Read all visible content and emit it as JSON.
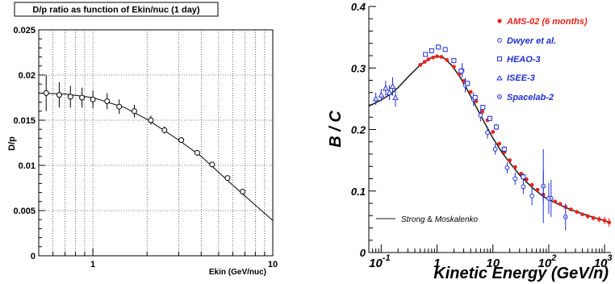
{
  "chart_data": [
    {
      "type": "scatter",
      "title": "D/p ratio as function of Ekin/nuc (1 day)",
      "xlabel": "Ekin (GeV/nuc)",
      "ylabel": "D/p",
      "x_scale": "log",
      "xlim": [
        0.5,
        10
      ],
      "ylim": [
        0,
        0.025
      ],
      "x_tick_labels": [
        "1",
        "10"
      ],
      "y_tick_labels": [
        "0",
        "0.005",
        "0.01",
        "0.015",
        "0.02",
        "0.025"
      ],
      "grid": true,
      "series": [
        {
          "marker": "open-circle",
          "x": [
            0.55,
            0.65,
            0.75,
            0.87,
            1.0,
            1.2,
            1.4,
            1.7,
            2.1,
            2.5,
            3.1,
            3.8,
            4.6,
            5.6,
            6.8
          ],
          "y": [
            0.018,
            0.0178,
            0.0176,
            0.0175,
            0.0173,
            0.0171,
            0.0165,
            0.016,
            0.015,
            0.0139,
            0.0128,
            0.0114,
            0.0101,
            0.0086,
            0.0071
          ],
          "yerr": [
            0.002,
            0.0014,
            0.0012,
            0.0011,
            0.001,
            0.0009,
            0.0008,
            0.0007,
            0.0005,
            0.0004,
            0.0003,
            0.0003,
            0.0002,
            0.0002,
            0.0002
          ]
        }
      ],
      "model_curve": {
        "x": [
          0.5,
          0.7,
          1.0,
          1.5,
          2.0,
          3.0,
          4.0,
          6.0,
          8.0,
          10.0
        ],
        "y": [
          0.018,
          0.0179,
          0.0175,
          0.0164,
          0.0151,
          0.0128,
          0.011,
          0.0078,
          0.0056,
          0.0039
        ]
      }
    },
    {
      "type": "scatter",
      "xlabel": "Kinetic Energy (GeV/n)",
      "ylabel": "B / C",
      "x_scale": "log",
      "xlim": [
        0.06,
        1300
      ],
      "ylim": [
        0,
        0.4
      ],
      "x_tick_labels": [
        {
          "base": "10",
          "exp": "-1"
        },
        {
          "base": "1",
          "exp": ""
        },
        {
          "base": "10",
          "exp": ""
        },
        {
          "base": "10",
          "exp": "2"
        },
        {
          "base": "10",
          "exp": "3"
        }
      ],
      "y_tick_labels": [
        "0",
        "0.1",
        "0.2",
        "0.3",
        "0.4"
      ],
      "legend_position": "top-right",
      "legend": [
        {
          "label": "AMS-02 (6 months)",
          "marker": "filled-circle",
          "color": "#e8241c"
        },
        {
          "label": "Dwyer et al.",
          "marker": "open-circle",
          "color": "#2030d0"
        },
        {
          "label": "HEAO-3",
          "marker": "open-square",
          "color": "#2030d0"
        },
        {
          "label": "ISEE-3",
          "marker": "open-triangle",
          "color": "#2030d0"
        },
        {
          "label": "Spacelab-2",
          "marker": "circle-dot",
          "color": "#2030d0"
        }
      ],
      "model_legend": {
        "name1": "Strong",
        "amp": "&",
        "name2": "Moskalenko"
      },
      "model_curve": {
        "x": [
          0.06,
          0.1,
          0.15,
          0.2,
          0.3,
          0.5,
          0.8,
          1.0,
          1.3,
          1.8,
          2.5,
          3.5,
          5,
          7,
          10,
          15,
          20,
          30,
          50,
          80,
          100,
          200,
          400,
          700,
          1000,
          1300
        ],
        "y": [
          0.238,
          0.248,
          0.258,
          0.268,
          0.285,
          0.305,
          0.317,
          0.319,
          0.317,
          0.305,
          0.287,
          0.264,
          0.237,
          0.212,
          0.186,
          0.161,
          0.146,
          0.126,
          0.106,
          0.091,
          0.086,
          0.073,
          0.063,
          0.056,
          0.052,
          0.048
        ]
      },
      "series": [
        {
          "name": "AMS-02 (6 months)",
          "color": "#e8241c",
          "marker": "filled-circle",
          "x": [
            0.5,
            0.6,
            0.7,
            0.85,
            1.0,
            1.2,
            1.5,
            2.0,
            2.5,
            3.0,
            4.0,
            5.0,
            6.5,
            8.0,
            10,
            13,
            16,
            20,
            25,
            32,
            40,
            50,
            63,
            80,
            100,
            130,
            160,
            200,
            250,
            320,
            400,
            500,
            630,
            800,
            1000,
            1200
          ],
          "y": [
            0.305,
            0.31,
            0.314,
            0.317,
            0.319,
            0.318,
            0.313,
            0.302,
            0.29,
            0.279,
            0.261,
            0.246,
            0.229,
            0.215,
            0.196,
            0.177,
            0.163,
            0.15,
            0.139,
            0.128,
            0.119,
            0.11,
            0.102,
            0.094,
            0.089,
            0.083,
            0.079,
            0.074,
            0.07,
            0.066,
            0.062,
            0.059,
            0.056,
            0.054,
            0.052,
            0.049
          ],
          "yerr": [
            0.002,
            0.002,
            0.002,
            0.002,
            0.002,
            0.002,
            0.002,
            0.002,
            0.002,
            0.002,
            0.002,
            0.002,
            0.002,
            0.002,
            0.002,
            0.002,
            0.002,
            0.002,
            0.002,
            0.002,
            0.002,
            0.002,
            0.002,
            0.002,
            0.002,
            0.002,
            0.003,
            0.003,
            0.003,
            0.003,
            0.003,
            0.004,
            0.004,
            0.005,
            0.006,
            0.007
          ]
        },
        {
          "name": "Dwyer et al.",
          "color": "#2030d0",
          "marker": "open-circle",
          "x": [
            2.8,
            3.2,
            4.5,
            6,
            8,
            11,
            18,
            25,
            35,
            50,
            80,
            110
          ],
          "y": [
            0.296,
            0.272,
            0.249,
            0.223,
            0.195,
            0.168,
            0.138,
            0.12,
            0.107,
            0.092,
            0.108,
            0.088
          ],
          "yerr": [
            0.012,
            0.012,
            0.011,
            0.01,
            0.01,
            0.009,
            0.009,
            0.01,
            0.012,
            0.015,
            0.025,
            0.03
          ]
        },
        {
          "name": "HEAO-3",
          "color": "#2030d0",
          "marker": "open-square",
          "x": [
            0.62,
            0.8,
            1.05,
            1.4,
            2.0,
            2.7,
            3.5,
            4.8,
            6.6,
            8.8,
            11.5,
            16,
            35
          ],
          "y": [
            0.322,
            0.328,
            0.334,
            0.33,
            0.312,
            0.295,
            0.275,
            0.252,
            0.236,
            0.218,
            0.204,
            0.168,
            0.123
          ],
          "yerr": [
            0.004,
            0.004,
            0.004,
            0.004,
            0.004,
            0.004,
            0.004,
            0.004,
            0.004,
            0.004,
            0.005,
            0.005,
            0.006
          ]
        },
        {
          "name": "ISEE-3",
          "color": "#2030d0",
          "marker": "open-triangle",
          "x": [
            0.08,
            0.1,
            0.12,
            0.14,
            0.16,
            0.18
          ],
          "y": [
            0.25,
            0.256,
            0.267,
            0.26,
            0.27,
            0.252
          ],
          "yerr": [
            0.01,
            0.01,
            0.012,
            0.012,
            0.015,
            0.015
          ]
        },
        {
          "name": "Spacelab-2",
          "color": "#2030d0",
          "marker": "circle-dot",
          "x": [
            80,
            100,
            200
          ],
          "y": [
            0.108,
            0.088,
            0.058
          ],
          "yerr": [
            0.06,
            0.025,
            0.022
          ]
        }
      ]
    }
  ]
}
